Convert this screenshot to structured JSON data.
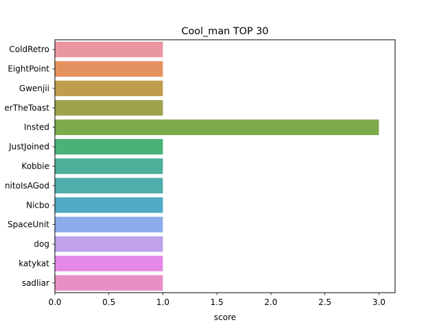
{
  "chart_data": {
    "type": "bar",
    "orientation": "horizontal",
    "title": "Cool_man TOP 30",
    "xlabel": "score",
    "ylabel": "",
    "xlim": [
      0,
      3.15
    ],
    "xticks": [
      "0.0",
      "0.5",
      "1.0",
      "1.5",
      "2.0",
      "2.5",
      "3.0"
    ],
    "categories": [
      "ColdRetro",
      "EightPoint",
      "Gwenjii",
      "erTheToast",
      "Insted",
      "JustJoined",
      "Kobbie",
      "nitoIsAGod",
      "Nicbo",
      "SpaceUnit",
      "dog",
      "katykat",
      "sadliar"
    ],
    "values": [
      1,
      1,
      1,
      1,
      3,
      1,
      1,
      1,
      1,
      1,
      1,
      1,
      1
    ],
    "colors": [
      "#ea96a0",
      "#e5915f",
      "#c09c4d",
      "#9fa24d",
      "#7daa4c",
      "#4ab277",
      "#4eaf99",
      "#4fadac",
      "#50aac4",
      "#8aacea",
      "#bfa2e9",
      "#e489e8",
      "#e88fc6"
    ],
    "grid": false,
    "legend": "none"
  }
}
